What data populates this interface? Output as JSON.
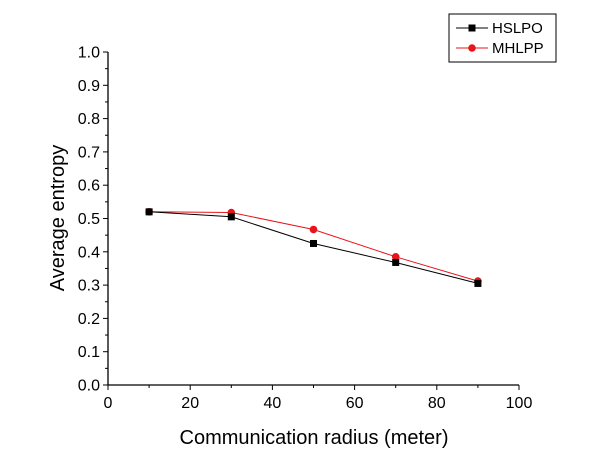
{
  "chart_data": {
    "type": "line",
    "title": "",
    "xlabel": "Communication radius (meter)",
    "ylabel": "Average entropy",
    "xlim": [
      0,
      100
    ],
    "ylim": [
      0.0,
      1.0
    ],
    "x_ticks": [
      "0",
      "20",
      "40",
      "60",
      "80",
      "100"
    ],
    "y_ticks": [
      "0.0",
      "0.1",
      "0.2",
      "0.3",
      "0.4",
      "0.5",
      "0.6",
      "0.7",
      "0.8",
      "0.9",
      "1.0"
    ],
    "grid": false,
    "legend_position": "top-right",
    "x": [
      10,
      30,
      50,
      70,
      90
    ],
    "series": [
      {
        "name": "HSLPO",
        "values": [
          0.52,
          0.505,
          0.425,
          0.368,
          0.305
        ],
        "color": "#000000",
        "marker": "square"
      },
      {
        "name": "MHLPP",
        "values": [
          0.52,
          0.518,
          0.467,
          0.385,
          0.312
        ],
        "color": "#e8141c",
        "marker": "circle"
      }
    ]
  }
}
